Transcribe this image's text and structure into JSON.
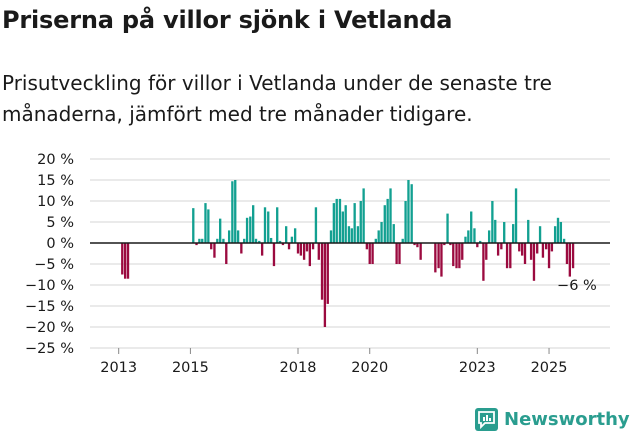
{
  "title": "Priserna på villor sjönk i Vetlanda",
  "subtitle": "Prisutveckling för villor i Vetlanda under de senaste tre månaderna, jämfört med tre månader tidigare.",
  "brand": "Newsworthy",
  "colors": {
    "positive": "#12a091",
    "negative": "#9b0a3f",
    "grid": "#d6d6d6",
    "brand": "#2a9d8f"
  },
  "chart_data": {
    "type": "bar",
    "ylim": [
      -25,
      20
    ],
    "yticks": [
      20,
      15,
      10,
      5,
      0,
      -5,
      -10,
      -15,
      -20,
      -25
    ],
    "ytick_labels": [
      "20 %",
      "15 %",
      "10 %",
      "5 %",
      "0 %",
      "−5 %",
      "−10 %",
      "−15 %",
      "−20 %",
      "−25 %"
    ],
    "xlim": [
      2012.2,
      2026.7
    ],
    "xticks": [
      2013,
      2015,
      2018,
      2020,
      2023,
      2025
    ],
    "xtick_labels": [
      "2013",
      "2015",
      "2018",
      "2020",
      "2023",
      "2025"
    ],
    "last_label": "−6 %",
    "bar_width_years": 0.065,
    "series": [
      {
        "x": 2013.1,
        "y": -7.5
      },
      {
        "x": 2013.18,
        "y": -8.5
      },
      {
        "x": 2013.26,
        "y": -8.5
      },
      {
        "x": 2015.08,
        "y": 8.3
      },
      {
        "x": 2015.17,
        "y": -0.5
      },
      {
        "x": 2015.25,
        "y": 1
      },
      {
        "x": 2015.33,
        "y": 1
      },
      {
        "x": 2015.42,
        "y": 9.5
      },
      {
        "x": 2015.5,
        "y": 8
      },
      {
        "x": 2015.58,
        "y": -1.5
      },
      {
        "x": 2015.67,
        "y": -3.5
      },
      {
        "x": 2015.75,
        "y": 1
      },
      {
        "x": 2015.83,
        "y": 5.8
      },
      {
        "x": 2015.92,
        "y": 1
      },
      {
        "x": 2016.0,
        "y": -5
      },
      {
        "x": 2016.08,
        "y": 3
      },
      {
        "x": 2016.17,
        "y": 14.7
      },
      {
        "x": 2016.25,
        "y": 15
      },
      {
        "x": 2016.33,
        "y": 3
      },
      {
        "x": 2016.42,
        "y": -2.5
      },
      {
        "x": 2016.5,
        "y": 1
      },
      {
        "x": 2016.58,
        "y": 6
      },
      {
        "x": 2016.67,
        "y": 6.3
      },
      {
        "x": 2016.75,
        "y": 9
      },
      {
        "x": 2016.83,
        "y": 1
      },
      {
        "x": 2016.92,
        "y": 0.5
      },
      {
        "x": 2017.0,
        "y": -3
      },
      {
        "x": 2017.08,
        "y": 8.5
      },
      {
        "x": 2017.17,
        "y": 7.5
      },
      {
        "x": 2017.25,
        "y": 1.2
      },
      {
        "x": 2017.33,
        "y": -5.5
      },
      {
        "x": 2017.42,
        "y": 8.5
      },
      {
        "x": 2017.5,
        "y": 0.5
      },
      {
        "x": 2017.58,
        "y": -0.5
      },
      {
        "x": 2017.67,
        "y": 4
      },
      {
        "x": 2017.75,
        "y": -1.5
      },
      {
        "x": 2017.83,
        "y": 1.5
      },
      {
        "x": 2017.92,
        "y": 3.5
      },
      {
        "x": 2018.0,
        "y": -2.5
      },
      {
        "x": 2018.08,
        "y": -3
      },
      {
        "x": 2018.17,
        "y": -4
      },
      {
        "x": 2018.25,
        "y": -2
      },
      {
        "x": 2018.33,
        "y": -5.5
      },
      {
        "x": 2018.42,
        "y": -1.5
      },
      {
        "x": 2018.5,
        "y": 8.5
      },
      {
        "x": 2018.58,
        "y": -4
      },
      {
        "x": 2018.67,
        "y": -13.5
      },
      {
        "x": 2018.75,
        "y": -20
      },
      {
        "x": 2018.83,
        "y": -14.5
      },
      {
        "x": 2018.92,
        "y": 3
      },
      {
        "x": 2019.0,
        "y": 9.5
      },
      {
        "x": 2019.08,
        "y": 10.5
      },
      {
        "x": 2019.17,
        "y": 10.5
      },
      {
        "x": 2019.25,
        "y": 7.5
      },
      {
        "x": 2019.33,
        "y": 9
      },
      {
        "x": 2019.42,
        "y": 4
      },
      {
        "x": 2019.5,
        "y": 3.5
      },
      {
        "x": 2019.58,
        "y": 9.5
      },
      {
        "x": 2019.67,
        "y": 4
      },
      {
        "x": 2019.75,
        "y": 10
      },
      {
        "x": 2019.83,
        "y": 13
      },
      {
        "x": 2019.92,
        "y": -1.5
      },
      {
        "x": 2020.0,
        "y": -5
      },
      {
        "x": 2020.08,
        "y": -5
      },
      {
        "x": 2020.17,
        "y": 1
      },
      {
        "x": 2020.25,
        "y": 3
      },
      {
        "x": 2020.33,
        "y": 5
      },
      {
        "x": 2020.42,
        "y": 9
      },
      {
        "x": 2020.5,
        "y": 10.5
      },
      {
        "x": 2020.58,
        "y": 13
      },
      {
        "x": 2020.67,
        "y": 4.5
      },
      {
        "x": 2020.75,
        "y": -5
      },
      {
        "x": 2020.83,
        "y": -5
      },
      {
        "x": 2020.92,
        "y": 1
      },
      {
        "x": 2021.0,
        "y": 10
      },
      {
        "x": 2021.08,
        "y": 15
      },
      {
        "x": 2021.17,
        "y": 14
      },
      {
        "x": 2021.25,
        "y": -0.5
      },
      {
        "x": 2021.33,
        "y": -1
      },
      {
        "x": 2021.42,
        "y": -4
      },
      {
        "x": 2021.83,
        "y": -7
      },
      {
        "x": 2021.92,
        "y": -6
      },
      {
        "x": 2022.0,
        "y": -8
      },
      {
        "x": 2022.08,
        "y": -0.5
      },
      {
        "x": 2022.17,
        "y": 7
      },
      {
        "x": 2022.25,
        "y": -0.5
      },
      {
        "x": 2022.33,
        "y": -5.5
      },
      {
        "x": 2022.42,
        "y": -6
      },
      {
        "x": 2022.5,
        "y": -6
      },
      {
        "x": 2022.58,
        "y": -4
      },
      {
        "x": 2022.67,
        "y": 1.5
      },
      {
        "x": 2022.75,
        "y": 3
      },
      {
        "x": 2022.83,
        "y": 7.5
      },
      {
        "x": 2022.92,
        "y": 3.5
      },
      {
        "x": 2023.0,
        "y": -1
      },
      {
        "x": 2023.08,
        "y": 0.5
      },
      {
        "x": 2023.17,
        "y": -9
      },
      {
        "x": 2023.25,
        "y": -4
      },
      {
        "x": 2023.33,
        "y": 3
      },
      {
        "x": 2023.42,
        "y": 10
      },
      {
        "x": 2023.5,
        "y": 5.5
      },
      {
        "x": 2023.58,
        "y": -3
      },
      {
        "x": 2023.67,
        "y": -1.5
      },
      {
        "x": 2023.75,
        "y": 5
      },
      {
        "x": 2023.83,
        "y": -6
      },
      {
        "x": 2023.92,
        "y": -6
      },
      {
        "x": 2024.0,
        "y": 4.5
      },
      {
        "x": 2024.08,
        "y": 13
      },
      {
        "x": 2024.17,
        "y": -2
      },
      {
        "x": 2024.25,
        "y": -3
      },
      {
        "x": 2024.33,
        "y": -5
      },
      {
        "x": 2024.42,
        "y": 5.5
      },
      {
        "x": 2024.5,
        "y": -4
      },
      {
        "x": 2024.58,
        "y": -9
      },
      {
        "x": 2024.67,
        "y": -2.5
      },
      {
        "x": 2024.75,
        "y": 4
      },
      {
        "x": 2024.83,
        "y": -3.5
      },
      {
        "x": 2024.92,
        "y": -1.5
      },
      {
        "x": 2025.0,
        "y": -6
      },
      {
        "x": 2025.08,
        "y": -2
      },
      {
        "x": 2025.17,
        "y": 4
      },
      {
        "x": 2025.25,
        "y": 6
      },
      {
        "x": 2025.33,
        "y": 5
      },
      {
        "x": 2025.42,
        "y": 1
      },
      {
        "x": 2025.5,
        "y": -5
      },
      {
        "x": 2025.58,
        "y": -8
      },
      {
        "x": 2025.67,
        "y": -6
      }
    ]
  }
}
